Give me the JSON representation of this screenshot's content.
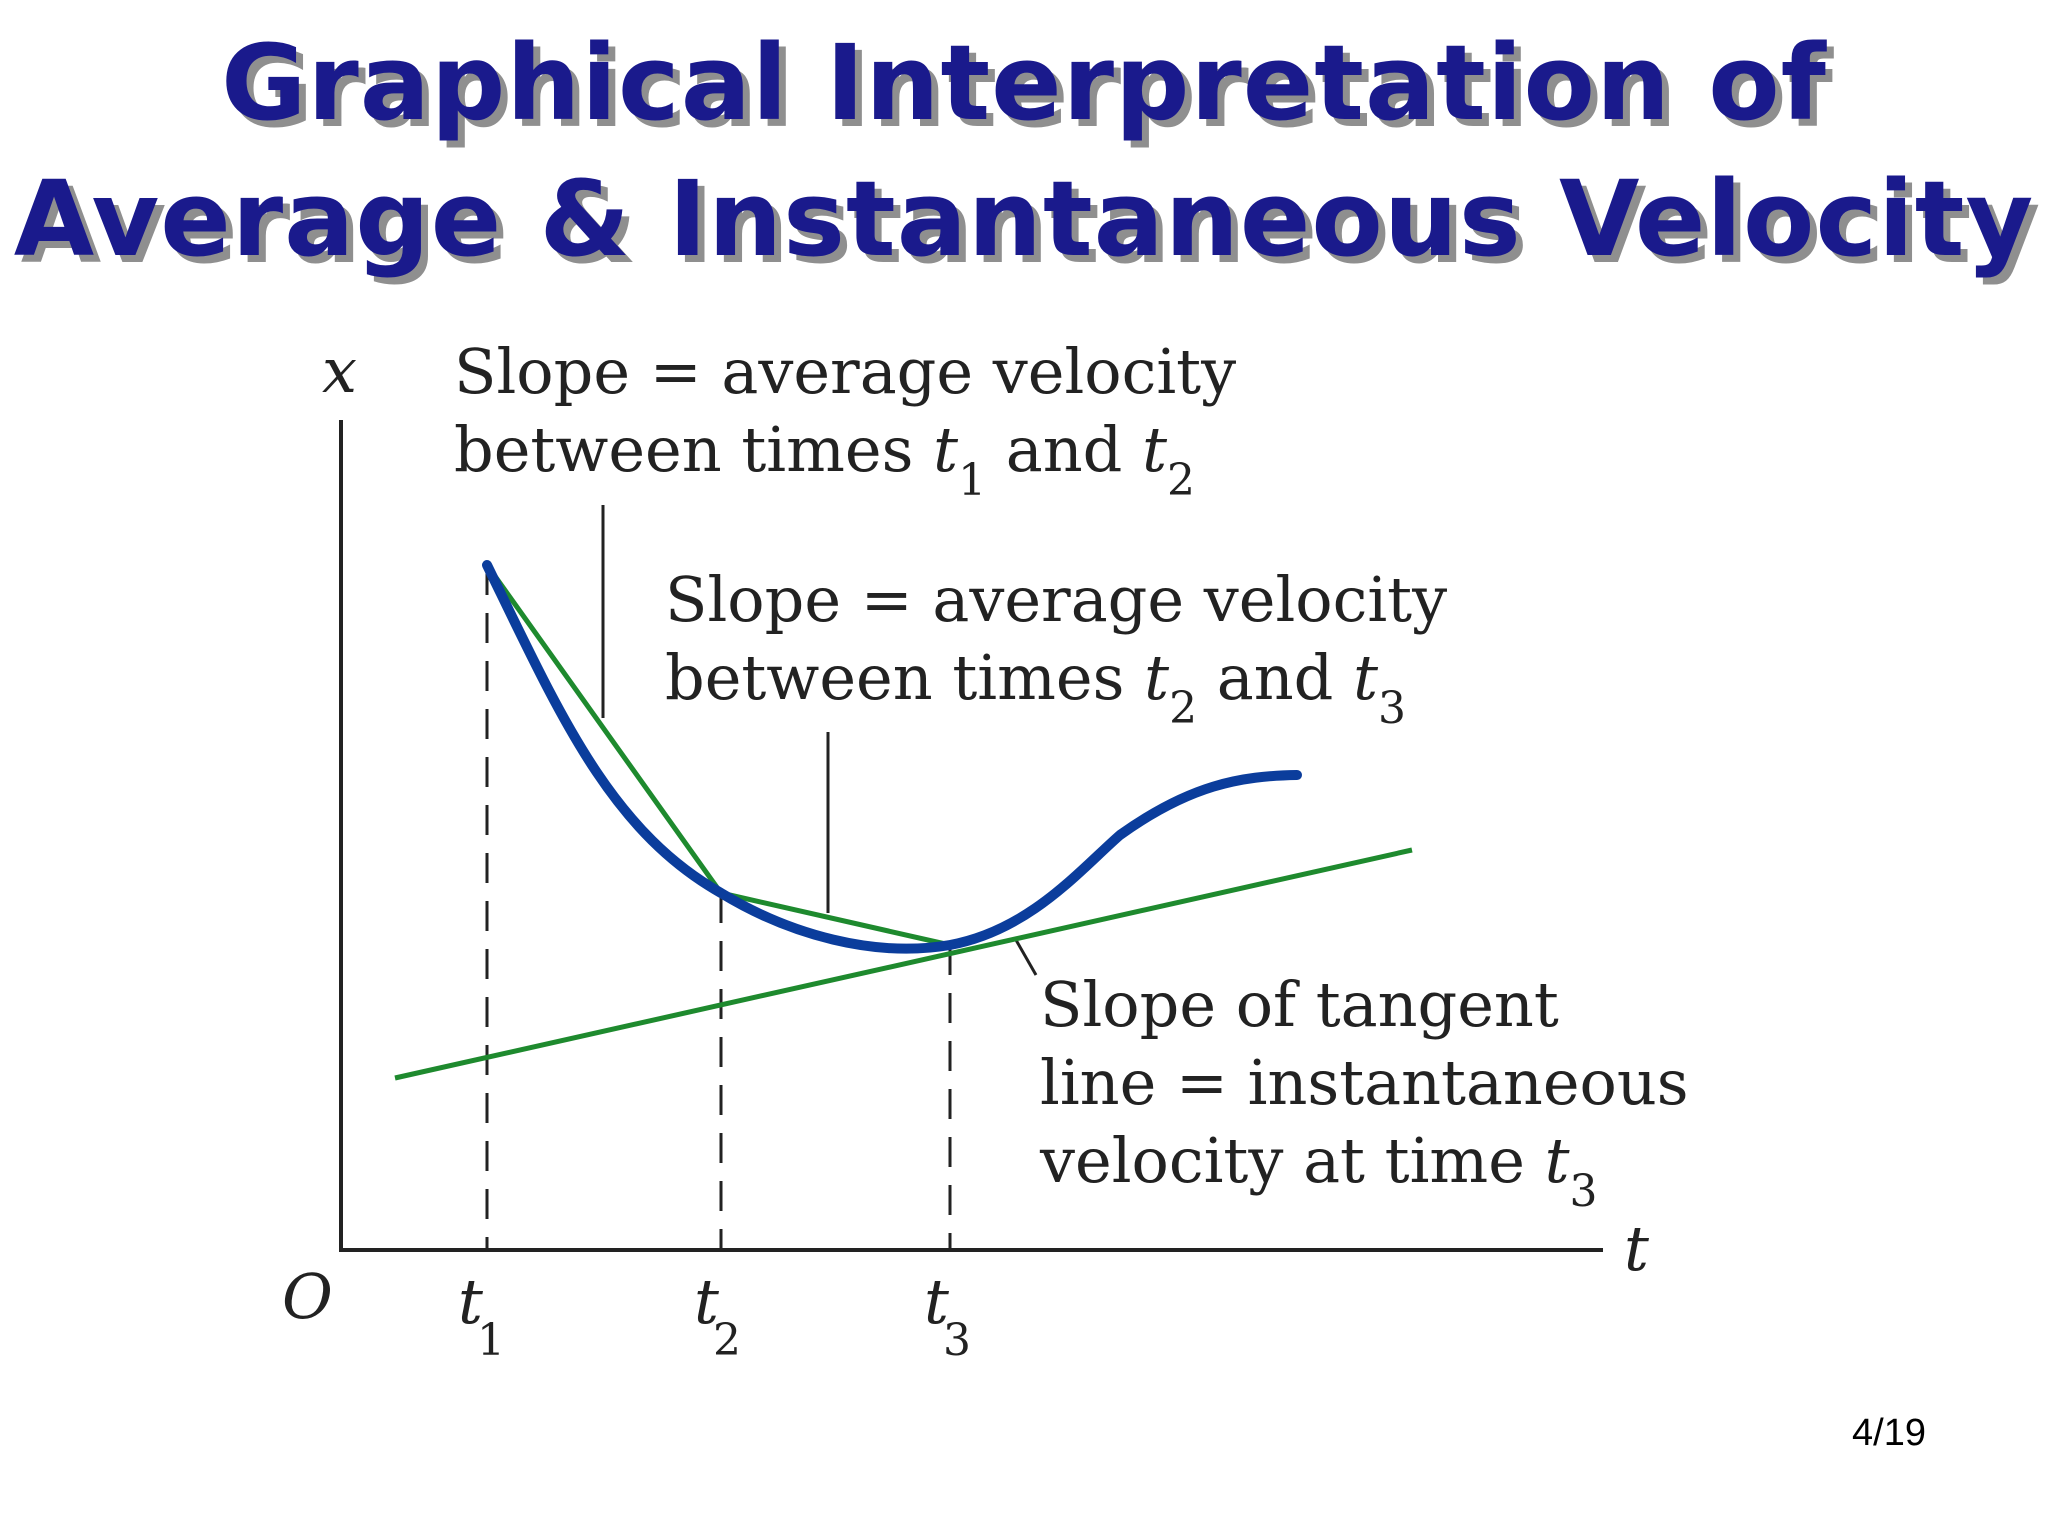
{
  "title": {
    "line1": "Graphical Interpretation of",
    "line2": "Average & Instantaneous Velocity"
  },
  "axes": {
    "x_axis_label": "t",
    "y_axis_label": "x",
    "origin_label": "O",
    "ticks": [
      {
        "var": "t",
        "sub": "1"
      },
      {
        "var": "t",
        "sub": "2"
      },
      {
        "var": "t",
        "sub": "3"
      }
    ]
  },
  "annotations": {
    "avg_12": {
      "line1": "Slope  = average velocity",
      "line2_prefix": "between times ",
      "t_a": "t",
      "sub_a": "1",
      "mid": " and ",
      "t_b": "t",
      "sub_b": "2"
    },
    "avg_23": {
      "line1": "Slope  = average velocity",
      "line2_prefix": "between times ",
      "t_a": "t",
      "sub_a": "2",
      "mid": " and ",
      "t_b": "t",
      "sub_b": "3"
    },
    "tangent": {
      "line1": "Slope of tangent",
      "line2": "line = instantaneous",
      "line3_prefix": "velocity at time ",
      "t": "t",
      "sub": "3"
    }
  },
  "colors": {
    "title": "#1a1a8c",
    "title_shadow": "#8f8f8f",
    "curve": "#0b3d9c",
    "secant": "#1e8a2e",
    "axis": "#222222"
  },
  "page_number": "4/19"
}
